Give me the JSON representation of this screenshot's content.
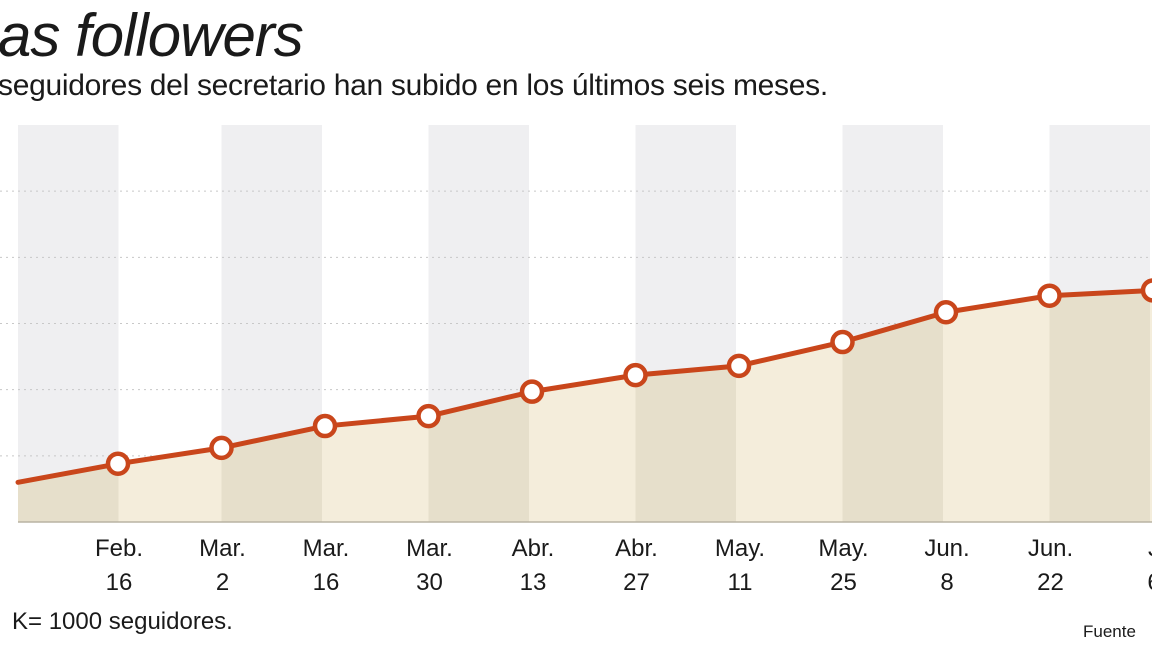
{
  "header": {
    "title": "as followers",
    "subtitle": "seguidores del secretario han subido en los últimos seis meses."
  },
  "footer": {
    "note": "K= 1000 seguidores.",
    "source": "Fuente"
  },
  "colors": {
    "line": "#c9461b",
    "marker_fill": "#ffffff",
    "area": "#f4eddb",
    "band": "#efeff1",
    "band_overlay": "#e6dfcb",
    "grid": "#c8c8c8"
  },
  "chart_data": {
    "type": "line",
    "title": "as followers",
    "subtitle": "seguidores del secretario han subido en los últimos seis meses.",
    "xlabel": "",
    "ylabel": "",
    "grid": true,
    "ylim": [
      0,
      6
    ],
    "categories": [
      {
        "month": "Feb.",
        "day": "16"
      },
      {
        "month": "Mar.",
        "day": "2"
      },
      {
        "month": "Mar.",
        "day": "16"
      },
      {
        "month": "Mar.",
        "day": "30"
      },
      {
        "month": "Abr.",
        "day": "13"
      },
      {
        "month": "Abr.",
        "day": "27"
      },
      {
        "month": "May.",
        "day": "11"
      },
      {
        "month": "May.",
        "day": "25"
      },
      {
        "month": "Jun.",
        "day": "8"
      },
      {
        "month": "Jun.",
        "day": "22"
      },
      {
        "month": "J",
        "day": "6"
      }
    ],
    "series": [
      {
        "name": "Seguidores",
        "start_value": 0.6,
        "values": [
          0.88,
          1.12,
          1.45,
          1.6,
          1.97,
          2.22,
          2.36,
          2.72,
          3.17,
          3.42,
          3.5
        ]
      }
    ]
  }
}
